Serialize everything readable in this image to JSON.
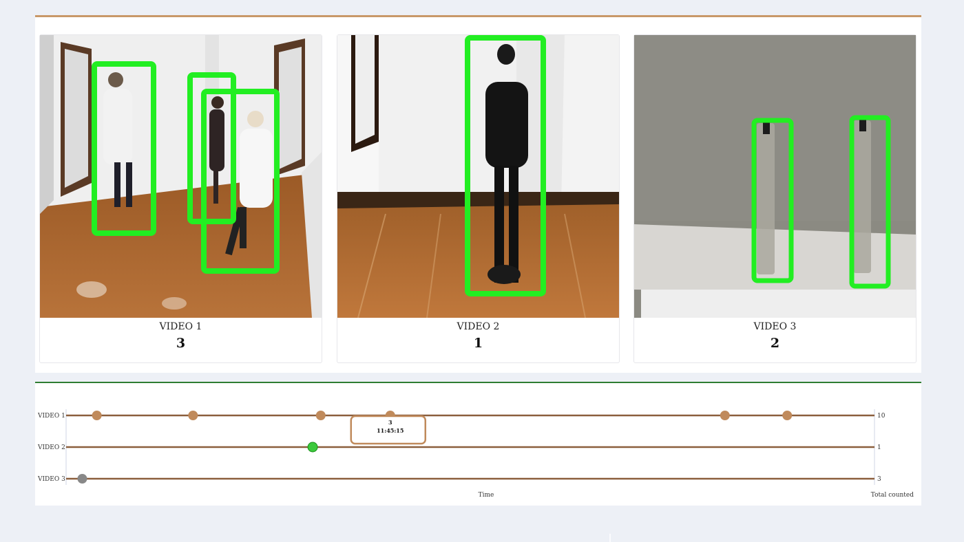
{
  "videos": [
    {
      "label": "VIDEO 1",
      "count": "3"
    },
    {
      "label": "VIDEO 2",
      "count": "1"
    },
    {
      "label": "VIDEO 3",
      "count": "2"
    }
  ],
  "timeline": {
    "rows": [
      {
        "label": "VIDEO 1",
        "total": "10",
        "color": "#c08a5b",
        "events": [
          0.038,
          0.157,
          0.315,
          0.401,
          0.815,
          0.892
        ]
      },
      {
        "label": "VIDEO 2",
        "total": "1",
        "color": "#3cc93c",
        "events": [
          0.305
        ]
      },
      {
        "label": "VIDEO 3",
        "total": "3",
        "color": "#888888",
        "events": [
          0.02
        ]
      }
    ],
    "tooltip": {
      "count": "3",
      "time": "11:45:15",
      "row": 0,
      "event": 3
    },
    "xlabel": "Time",
    "right_label": "Total counted",
    "line_color": "#8b5e3c"
  },
  "colors": {
    "accent": "#c89868",
    "detection_box": "#22ee22",
    "divider": "#2e7d32"
  }
}
